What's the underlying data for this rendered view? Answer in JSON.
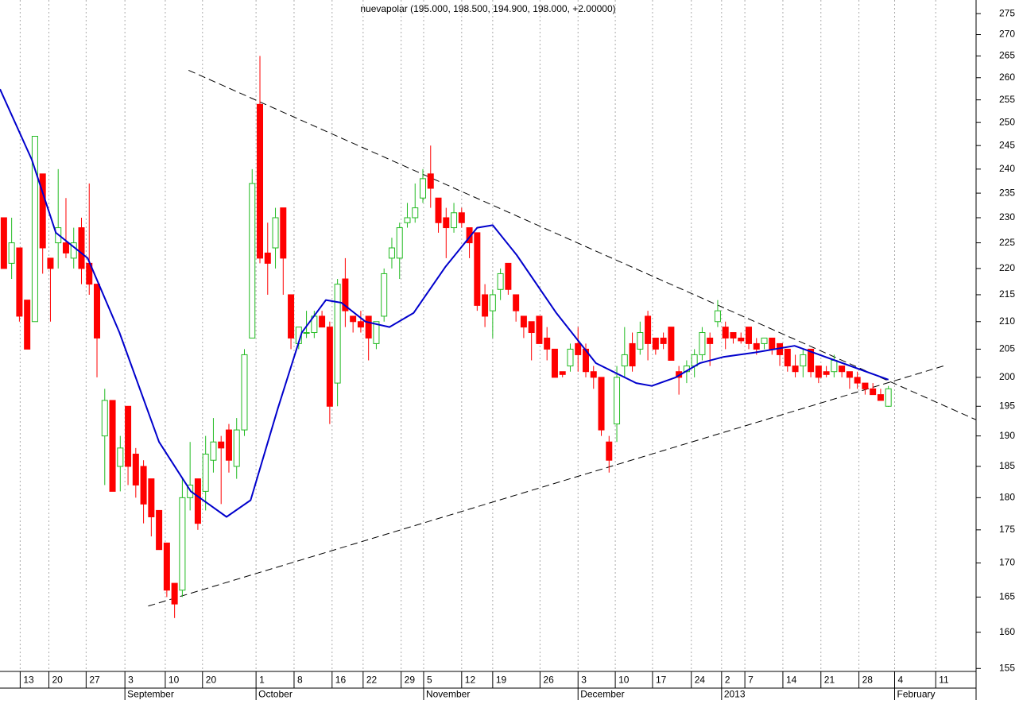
{
  "chart_data": {
    "type": "candlestick",
    "title": "nuevapolar (195.000, 198.500, 194.900, 198.000, +2.00000)",
    "up_color": "#22bb22",
    "down_color": "#ff0000",
    "open": [
      230,
      221,
      224,
      214,
      210,
      239,
      222,
      225,
      225,
      222,
      228,
      221,
      217,
      190,
      196,
      185,
      195,
      187,
      185,
      183,
      178,
      173,
      167,
      166,
      180,
      183,
      181,
      186,
      189,
      191,
      185,
      191,
      207,
      254,
      223,
      224,
      232,
      215,
      206,
      208,
      208,
      211,
      209,
      199,
      218,
      211,
      210,
      211,
      206,
      211,
      222,
      222,
      229,
      230,
      234,
      239,
      234,
      230,
      228,
      231,
      228,
      227,
      215,
      212,
      216,
      221,
      215,
      211,
      210,
      211,
      207,
      205,
      201,
      202,
      206,
      205,
      201,
      200,
      189,
      192,
      202,
      206,
      205,
      211,
      207,
      207,
      209,
      201,
      201,
      202,
      204,
      207,
      210,
      209,
      208,
      207,
      209,
      206,
      206,
      207,
      206,
      205,
      202,
      202,
      205,
      202,
      201,
      201,
      202,
      201,
      200,
      199,
      198,
      197,
      195
    ],
    "high": [
      230,
      230,
      224,
      214,
      247,
      239,
      222,
      240,
      234,
      228,
      230,
      237,
      217,
      198,
      196,
      190,
      195,
      188,
      186,
      183,
      178,
      173,
      167,
      183,
      189,
      183,
      190,
      193,
      190,
      192,
      193,
      205,
      240,
      265,
      229,
      232,
      232,
      215,
      209,
      212,
      212,
      212,
      210,
      218,
      222,
      211,
      212,
      211,
      210,
      220,
      226,
      229,
      233,
      237,
      240,
      245,
      234,
      232,
      233,
      232,
      228,
      227,
      217,
      216,
      220,
      221,
      215,
      211,
      210,
      211,
      209,
      205,
      201,
      206,
      209,
      206,
      202,
      200,
      190,
      202,
      209,
      208,
      210,
      212,
      207,
      208,
      209,
      202,
      203,
      205,
      209,
      208,
      214,
      210,
      208,
      208,
      209,
      207,
      207,
      207,
      206,
      205,
      204,
      205,
      205,
      202,
      202,
      204,
      202,
      201,
      201,
      199,
      199,
      198,
      198.5
    ],
    "low": [
      220,
      218,
      210,
      205,
      210,
      219,
      210,
      220,
      222,
      220,
      217,
      215,
      200,
      182,
      181,
      181,
      182,
      180,
      176,
      174,
      172,
      165,
      162,
      165,
      178,
      175,
      178,
      184,
      179,
      184,
      183,
      190,
      207,
      221,
      215,
      220,
      215,
      205,
      205,
      207,
      207,
      209,
      192,
      195,
      209,
      208,
      208,
      203,
      205,
      210,
      220,
      218,
      228,
      229,
      233,
      232,
      227,
      222,
      227,
      228,
      222,
      212,
      209,
      207,
      214,
      215,
      210,
      207,
      203,
      206,
      203,
      200,
      200,
      201,
      201,
      200,
      198,
      190,
      184,
      189,
      200,
      201,
      204,
      203,
      204,
      205,
      203,
      197,
      199,
      200,
      203,
      202,
      209,
      205,
      206,
      206,
      205,
      204,
      205,
      204,
      202,
      201,
      200,
      200,
      200,
      199,
      200,
      200,
      200,
      198,
      198,
      197,
      197,
      196,
      194.9
    ],
    "close": [
      220,
      225,
      211,
      205,
      247,
      224,
      220,
      228,
      223,
      225,
      220,
      217,
      207,
      196,
      181,
      188,
      185,
      182,
      179,
      177,
      172,
      166,
      164,
      180,
      182,
      176,
      187,
      189,
      188,
      186,
      191,
      204,
      237,
      222,
      221,
      230,
      222,
      207,
      209,
      208,
      211,
      209,
      195,
      217,
      212,
      210,
      209,
      207,
      210,
      219,
      224,
      228,
      230,
      232,
      238,
      236,
      229,
      228,
      231,
      229,
      225,
      213,
      211,
      215,
      219,
      216,
      212,
      209,
      208,
      206,
      205,
      200,
      200.5,
      205,
      204,
      201,
      200,
      191,
      186,
      200,
      204,
      202,
      208,
      206,
      205,
      206,
      203,
      200,
      202,
      204,
      208,
      206,
      212,
      207,
      207,
      206.5,
      206,
      205,
      207,
      205,
      204,
      202,
      201,
      204,
      201,
      200,
      200.5,
      203,
      201,
      200,
      199,
      198,
      197,
      196,
      198
    ],
    "moving_average": {
      "color": "#0000cc",
      "x": [
        -0.5,
        3.6,
        6.7,
        10.8,
        14.9,
        20,
        24.1,
        28.7,
        31.8,
        35.3,
        38.4,
        41.5,
        43.5,
        46.6,
        49.7,
        52.8,
        56.9,
        61,
        63,
        66.1,
        71.2,
        76.3,
        81.5,
        83.5,
        86.6,
        89.7,
        92.7,
        96.8,
        101.9,
        107.1,
        114
      ],
      "values": [
        257.4,
        242,
        227,
        222,
        208,
        189,
        181,
        177,
        179.6,
        194.6,
        208,
        214,
        213.5,
        210,
        209,
        211.6,
        220.3,
        228,
        228.5,
        222.6,
        211.6,
        202.5,
        199,
        198.5,
        200,
        202.5,
        203.6,
        204.4,
        205.6,
        203,
        199.6
      ]
    },
    "trend_lines": [
      {
        "x": [
          23.8,
          125.3
        ],
        "values": [
          261.7,
          192.7
        ]
      },
      {
        "x": [
          18.6,
          121.1
        ],
        "values": [
          163.7,
          202.0
        ]
      }
    ],
    "log_y": true,
    "xlim": [
      -0.5,
      125.3
    ],
    "ylim": [
      154.6,
      278.3
    ],
    "yticks": [
      155,
      160,
      165,
      170,
      175,
      180,
      185,
      190,
      195,
      200,
      205,
      210,
      215,
      220,
      225,
      230,
      235,
      240,
      245,
      250,
      255,
      260,
      265,
      270,
      275
    ],
    "xticks": [
      {
        "value": 2.1,
        "label": "13"
      },
      {
        "value": 5.8,
        "label": "20"
      },
      {
        "value": 10.6,
        "label": "27"
      },
      {
        "value": 15.6,
        "label": "3"
      },
      {
        "value": 20.8,
        "label": "10"
      },
      {
        "value": 25.6,
        "label": "20"
      },
      {
        "value": 32.5,
        "label": "1"
      },
      {
        "value": 37.4,
        "label": "8"
      },
      {
        "value": 42.3,
        "label": "16"
      },
      {
        "value": 46.3,
        "label": "22"
      },
      {
        "value": 51.2,
        "label": "29"
      },
      {
        "value": 54.1,
        "label": "5"
      },
      {
        "value": 59.0,
        "label": "12"
      },
      {
        "value": 63.0,
        "label": "19"
      },
      {
        "value": 69.1,
        "label": "26"
      },
      {
        "value": 74.0,
        "label": "3"
      },
      {
        "value": 78.8,
        "label": "10"
      },
      {
        "value": 83.6,
        "label": "17"
      },
      {
        "value": 88.6,
        "label": "24"
      },
      {
        "value": 92.5,
        "label": "2"
      },
      {
        "value": 95.5,
        "label": "7"
      },
      {
        "value": 100.4,
        "label": "14"
      },
      {
        "value": 105.3,
        "label": "21"
      },
      {
        "value": 110.2,
        "label": "28"
      },
      {
        "value": 114.8,
        "label": "4"
      },
      {
        "value": 120.1,
        "label": "11"
      }
    ],
    "month_ticks": [
      {
        "value": 15.6,
        "label": "September"
      },
      {
        "value": 32.5,
        "label": "October"
      },
      {
        "value": 54.1,
        "label": "November"
      },
      {
        "value": 74.0,
        "label": "December"
      },
      {
        "value": 92.5,
        "label": "2013"
      },
      {
        "value": 114.8,
        "label": "February"
      }
    ],
    "grid": true
  }
}
